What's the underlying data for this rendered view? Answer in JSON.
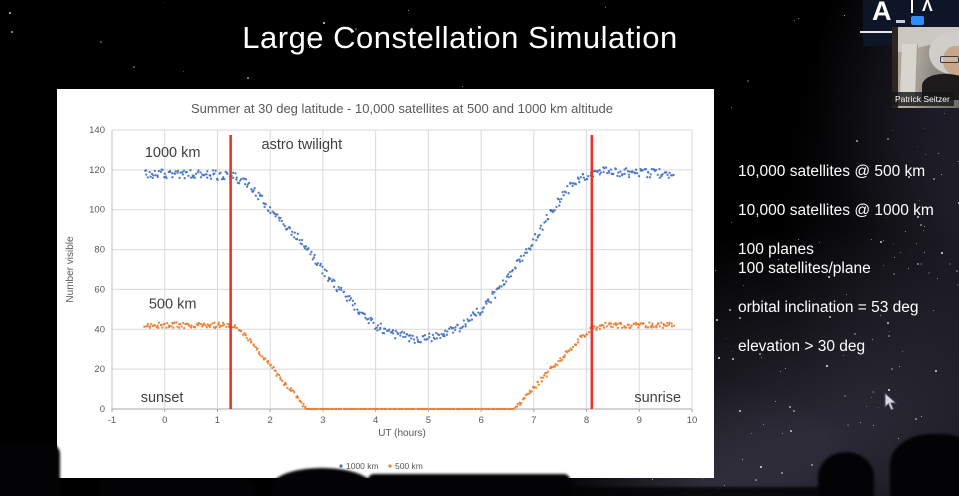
{
  "slide": {
    "title": "Large Constellation Simulation",
    "notes": {
      "sat500": "10,000 satellites @ 500 km",
      "sat1000": "10,000 satellites @ 1000 km",
      "planes": "100 planes",
      "sats_per_plane": "100 satellites/plane",
      "inclination": "orbital inclination = 53 deg",
      "elevation": "elevation > 30 deg"
    }
  },
  "webcam": {
    "participant_name": "Patrick Seitzer"
  },
  "logo": {
    "letter": "A",
    "divider": "",
    "caret": "Λ"
  },
  "chart_data": {
    "type": "scatter",
    "title": "Summer at 30 deg latitude - 10,000 satellites at 500 and 1000 km altitude",
    "xlabel": "UT (hours)",
    "ylabel": "Number visible",
    "xlim": [
      -1,
      10
    ],
    "ylim": [
      0,
      140
    ],
    "x_ticks": [
      -1,
      0,
      1,
      2,
      3,
      4,
      5,
      6,
      7,
      8,
      9,
      10
    ],
    "y_ticks": [
      0,
      20,
      40,
      60,
      80,
      100,
      120,
      140
    ],
    "x_data_range": [
      -0.38,
      9.65
    ],
    "points_per_series": 470,
    "grid": true,
    "legend_position": "bottom",
    "colors": {
      "blue": "#4472c4",
      "orange": "#ed7d31",
      "red_line": "#e8342a",
      "grid": "#d9d9d9",
      "axis": "#a6a6a6",
      "tick_text": "#595959",
      "annotation": "#3f3f3f"
    },
    "series": [
      {
        "name": "1000 km",
        "color": "#4472c4",
        "noise": 2.3,
        "anchors": [
          [
            -0.38,
            118
          ],
          [
            0.5,
            118
          ],
          [
            1.25,
            117
          ],
          [
            1.6,
            113
          ],
          [
            2.1,
            97
          ],
          [
            2.6,
            84
          ],
          [
            3.1,
            66
          ],
          [
            3.6,
            52
          ],
          [
            4.0,
            42
          ],
          [
            4.4,
            37
          ],
          [
            4.8,
            35
          ],
          [
            5.2,
            36
          ],
          [
            5.6,
            41
          ],
          [
            6.0,
            50
          ],
          [
            6.4,
            62
          ],
          [
            6.9,
            80
          ],
          [
            7.3,
            98
          ],
          [
            7.7,
            112
          ],
          [
            8.0,
            117
          ],
          [
            8.3,
            119
          ],
          [
            9.65,
            118
          ]
        ]
      },
      {
        "name": "500 km",
        "color": "#ed7d31",
        "noise": 1.4,
        "anchors": [
          [
            -0.38,
            42
          ],
          [
            1.3,
            42
          ],
          [
            1.5,
            38
          ],
          [
            2.0,
            22
          ],
          [
            2.4,
            9
          ],
          [
            2.68,
            0
          ],
          [
            6.62,
            0
          ],
          [
            6.9,
            8
          ],
          [
            7.4,
            22
          ],
          [
            7.9,
            36
          ],
          [
            8.1,
            40
          ],
          [
            8.35,
            42
          ],
          [
            9.65,
            42
          ]
        ]
      }
    ],
    "vlines": [
      {
        "x": 1.25,
        "y0": 0,
        "y1": 137.5,
        "color": "#e8342a",
        "label": "astro twilight / sunset marker"
      },
      {
        "x": 8.1,
        "y0": 0,
        "y1": 137.5,
        "color": "#e8342a",
        "label": "sunrise marker"
      }
    ],
    "annotations": [
      {
        "text": "1000 km",
        "x": 0.15,
        "y": 129,
        "size": 14.5
      },
      {
        "text": "astro twilight",
        "x": 2.6,
        "y": 133,
        "size": 14.5
      },
      {
        "text": "500 km",
        "x": 0.15,
        "y": 53,
        "size": 14.5
      },
      {
        "text": "sunset",
        "x": -0.05,
        "y": 6,
        "size": 14.5
      },
      {
        "text": "sunrise",
        "x": 9.35,
        "y": 6,
        "size": 14.5
      }
    ]
  }
}
